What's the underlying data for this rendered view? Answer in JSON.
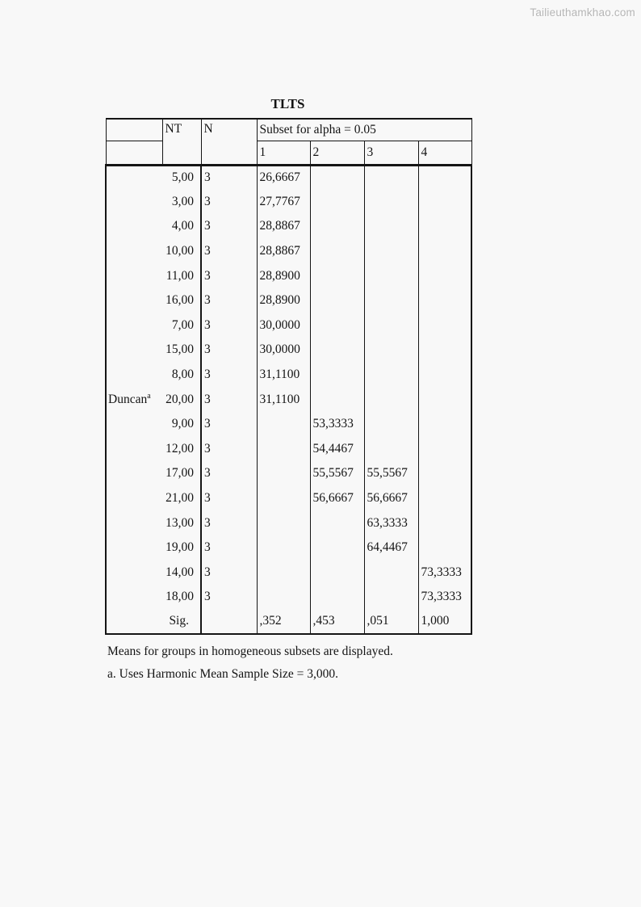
{
  "watermark": "Tailieuthamkhao.com",
  "title": "TLTS",
  "table": {
    "header": {
      "col_nt": "NT",
      "col_n": "N",
      "subset_label": "Subset for alpha = 0.05",
      "subset_cols": [
        "1",
        "2",
        "3",
        "4"
      ]
    },
    "group_label": "Duncan",
    "group_label_sup": "a",
    "group_label_row_index": 9,
    "rows": [
      {
        "nt": "5,00",
        "n": "3",
        "s1": "26,6667",
        "s2": "",
        "s3": "",
        "s4": ""
      },
      {
        "nt": "3,00",
        "n": "3",
        "s1": "27,7767",
        "s2": "",
        "s3": "",
        "s4": ""
      },
      {
        "nt": "4,00",
        "n": "3",
        "s1": "28,8867",
        "s2": "",
        "s3": "",
        "s4": ""
      },
      {
        "nt": "10,00",
        "n": "3",
        "s1": "28,8867",
        "s2": "",
        "s3": "",
        "s4": ""
      },
      {
        "nt": "11,00",
        "n": "3",
        "s1": "28,8900",
        "s2": "",
        "s3": "",
        "s4": ""
      },
      {
        "nt": "16,00",
        "n": "3",
        "s1": "28,8900",
        "s2": "",
        "s3": "",
        "s4": ""
      },
      {
        "nt": "7,00",
        "n": "3",
        "s1": "30,0000",
        "s2": "",
        "s3": "",
        "s4": ""
      },
      {
        "nt": "15,00",
        "n": "3",
        "s1": "30,0000",
        "s2": "",
        "s3": "",
        "s4": ""
      },
      {
        "nt": "8,00",
        "n": "3",
        "s1": "31,1100",
        "s2": "",
        "s3": "",
        "s4": ""
      },
      {
        "nt": "20,00",
        "n": "3",
        "s1": "31,1100",
        "s2": "",
        "s3": "",
        "s4": ""
      },
      {
        "nt": "9,00",
        "n": "3",
        "s1": "",
        "s2": "53,3333",
        "s3": "",
        "s4": ""
      },
      {
        "nt": "12,00",
        "n": "3",
        "s1": "",
        "s2": "54,4467",
        "s3": "",
        "s4": ""
      },
      {
        "nt": "17,00",
        "n": "3",
        "s1": "",
        "s2": "55,5567",
        "s3": "55,5567",
        "s4": ""
      },
      {
        "nt": "21,00",
        "n": "3",
        "s1": "",
        "s2": "56,6667",
        "s3": "56,6667",
        "s4": ""
      },
      {
        "nt": "13,00",
        "n": "3",
        "s1": "",
        "s2": "",
        "s3": "63,3333",
        "s4": ""
      },
      {
        "nt": "19,00",
        "n": "3",
        "s1": "",
        "s2": "",
        "s3": "64,4467",
        "s4": ""
      },
      {
        "nt": "14,00",
        "n": "3",
        "s1": "",
        "s2": "",
        "s3": "",
        "s4": "73,3333"
      },
      {
        "nt": "18,00",
        "n": "3",
        "s1": "",
        "s2": "",
        "s3": "",
        "s4": "73,3333"
      },
      {
        "nt": "Sig.",
        "n": "",
        "s1": ",352",
        "s2": ",453",
        "s3": ",051",
        "s4": "1,000"
      }
    ]
  },
  "footnotes": [
    "Means for groups in homogeneous subsets are displayed.",
    "a. Uses Harmonic Mean Sample Size = 3,000."
  ],
  "colors": {
    "background": "#f8f8f8",
    "text": "#141414",
    "border": "#151515",
    "watermark": "#b5b5b5"
  }
}
